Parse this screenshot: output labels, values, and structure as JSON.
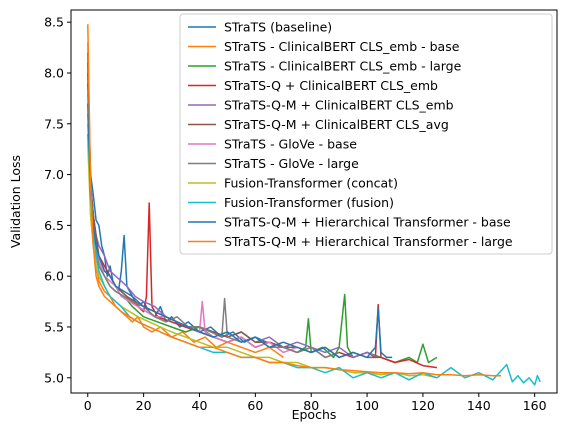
{
  "chart_data": {
    "type": "line",
    "title": "",
    "xlabel": "Epochs",
    "ylabel": "Validation Loss",
    "xlim": [
      -6,
      168
    ],
    "ylim": [
      4.85,
      8.62
    ],
    "xticks": [
      0,
      20,
      40,
      60,
      80,
      100,
      120,
      140,
      160
    ],
    "xtick_labels": [
      "0",
      "20",
      "40",
      "60",
      "80",
      "100",
      "120",
      "140",
      "160"
    ],
    "yticks": [
      5.0,
      5.5,
      6.0,
      6.5,
      7.0,
      7.5,
      8.0,
      8.5
    ],
    "ytick_labels": [
      "5.0",
      "5.5",
      "6.0",
      "6.5",
      "7.0",
      "7.5",
      "8.0",
      "8.5"
    ],
    "grid": false,
    "legend_position": "top-right",
    "series": [
      {
        "name": "STraTS (baseline)",
        "color": "#1f77b4",
        "x": [
          0,
          1,
          2,
          3,
          4,
          5,
          6,
          7,
          8,
          9,
          10,
          11,
          12,
          13,
          14,
          16,
          18,
          20,
          22,
          24,
          26,
          28,
          30,
          33,
          36,
          40,
          44,
          48,
          52,
          56,
          60,
          64
        ],
        "y": [
          7.9,
          7.0,
          6.8,
          6.55,
          6.5,
          6.3,
          6.2,
          6.0,
          6.1,
          5.95,
          5.9,
          5.85,
          6.05,
          6.4,
          5.9,
          5.8,
          5.7,
          5.75,
          5.65,
          5.6,
          5.7,
          5.55,
          5.6,
          5.5,
          5.55,
          5.45,
          5.5,
          5.4,
          5.45,
          5.35,
          5.4,
          5.35
        ]
      },
      {
        "name": "STraTS - ClinicalBERT CLS_emb - base",
        "color": "#ff7f0e",
        "x": [
          0,
          1,
          2,
          3,
          4,
          5,
          6,
          8,
          10,
          12,
          14,
          16,
          18,
          20,
          23,
          26,
          30,
          34,
          38,
          42,
          46,
          50,
          55,
          60,
          65,
          70
        ],
        "y": [
          8.3,
          6.6,
          6.3,
          6.1,
          5.95,
          5.9,
          5.85,
          5.8,
          5.7,
          5.65,
          5.6,
          5.55,
          5.6,
          5.5,
          5.45,
          5.5,
          5.4,
          5.45,
          5.35,
          5.4,
          5.3,
          5.35,
          5.3,
          5.25,
          5.3,
          5.2
        ]
      },
      {
        "name": "STraTS - ClinicalBERT CLS_emb - large",
        "color": "#2ca02c",
        "x": [
          0,
          1,
          2,
          3,
          4,
          6,
          8,
          10,
          13,
          16,
          20,
          25,
          30,
          35,
          40,
          45,
          50,
          55,
          60,
          65,
          70,
          75,
          78,
          79,
          80,
          84,
          88,
          90,
          92,
          93,
          95,
          100,
          105,
          110,
          115,
          118,
          120,
          122,
          125
        ],
        "y": [
          8.0,
          6.8,
          6.5,
          6.3,
          6.1,
          6.0,
          5.9,
          5.85,
          5.8,
          5.7,
          5.6,
          5.55,
          5.5,
          5.45,
          5.5,
          5.4,
          5.35,
          5.4,
          5.3,
          5.35,
          5.3,
          5.25,
          5.3,
          5.58,
          5.25,
          5.3,
          5.2,
          5.3,
          5.82,
          5.3,
          5.2,
          5.25,
          5.2,
          5.15,
          5.2,
          5.15,
          5.33,
          5.15,
          5.2
        ]
      },
      {
        "name": "STraTS-Q + ClinicalBERT CLS_emb",
        "color": "#d62728",
        "x": [
          0,
          1,
          2,
          3,
          4,
          6,
          8,
          10,
          12,
          14,
          16,
          18,
          20,
          21,
          22,
          23,
          25,
          30,
          35,
          40,
          45,
          50,
          55,
          60,
          65,
          70,
          75,
          80,
          85,
          90,
          95,
          100,
          103,
          104,
          105,
          110,
          115,
          120,
          125
        ],
        "y": [
          8.1,
          6.9,
          6.6,
          6.3,
          6.2,
          6.1,
          6.0,
          5.9,
          5.85,
          5.8,
          5.75,
          5.7,
          5.65,
          5.8,
          6.72,
          5.7,
          5.6,
          5.55,
          5.5,
          5.45,
          5.4,
          5.35,
          5.4,
          5.3,
          5.35,
          5.3,
          5.25,
          5.3,
          5.2,
          5.25,
          5.2,
          5.25,
          5.2,
          5.72,
          5.2,
          5.15,
          5.18,
          5.12,
          5.1
        ]
      },
      {
        "name": "STraTS-Q-M + ClinicalBERT CLS_emb",
        "color": "#9467bd",
        "x": [
          0,
          1,
          2,
          3,
          4,
          6,
          8,
          10,
          12,
          14,
          17,
          20,
          24,
          28,
          32,
          36,
          40,
          45,
          50,
          55,
          60,
          65,
          70,
          75,
          80,
          85,
          90,
          95,
          100,
          104
        ],
        "y": [
          7.8,
          6.9,
          6.6,
          6.4,
          6.3,
          6.2,
          6.05,
          6.0,
          5.95,
          5.9,
          5.8,
          5.75,
          5.7,
          5.6,
          5.55,
          5.5,
          5.5,
          5.45,
          5.4,
          5.45,
          5.35,
          5.4,
          5.3,
          5.35,
          5.3,
          5.25,
          5.3,
          5.2,
          5.25,
          5.2
        ]
      },
      {
        "name": "STraTS-Q-M + ClinicalBERT CLS_avg",
        "color": "#8c564b",
        "x": [
          0,
          1,
          2,
          3,
          4,
          6,
          8,
          10,
          12,
          14,
          17,
          20,
          24,
          28,
          32,
          36,
          40,
          45,
          50,
          55,
          60,
          65,
          70,
          75,
          80,
          85,
          90,
          95,
          100,
          105
        ],
        "y": [
          8.2,
          6.9,
          6.6,
          6.4,
          6.2,
          6.05,
          6.0,
          5.9,
          5.85,
          5.8,
          5.75,
          5.7,
          5.65,
          5.6,
          5.55,
          5.5,
          5.5,
          5.45,
          5.4,
          5.45,
          5.35,
          5.35,
          5.3,
          5.3,
          5.25,
          5.3,
          5.2,
          5.25,
          5.2,
          5.2
        ]
      },
      {
        "name": "STraTS - GloVe - base",
        "color": "#e377c2",
        "x": [
          0,
          1,
          2,
          3,
          4,
          6,
          8,
          10,
          12,
          15,
          18,
          21,
          24,
          28,
          32,
          36,
          40,
          41,
          42,
          45,
          50,
          55,
          60,
          65,
          70,
          75
        ],
        "y": [
          7.5,
          6.8,
          6.5,
          6.3,
          6.15,
          6.0,
          5.95,
          5.9,
          5.8,
          5.75,
          5.7,
          5.65,
          5.6,
          5.6,
          5.55,
          5.5,
          5.45,
          5.75,
          5.45,
          5.4,
          5.35,
          5.4,
          5.3,
          5.35,
          5.25,
          5.3
        ]
      },
      {
        "name": "STraTS - GloVe - large",
        "color": "#7f7f7f",
        "x": [
          0,
          1,
          2,
          3,
          4,
          6,
          8,
          10,
          13,
          16,
          20,
          24,
          28,
          32,
          36,
          40,
          44,
          48,
          49,
          50,
          55,
          60,
          65,
          70,
          75,
          80,
          85,
          90
        ],
        "y": [
          7.4,
          6.7,
          6.4,
          6.25,
          6.1,
          6.0,
          5.9,
          5.85,
          5.8,
          5.75,
          5.7,
          5.6,
          5.55,
          5.6,
          5.5,
          5.5,
          5.45,
          5.4,
          5.78,
          5.4,
          5.35,
          5.4,
          5.3,
          5.3,
          5.25,
          5.3,
          5.2,
          5.25
        ]
      },
      {
        "name": "Fusion-Transformer (concat)",
        "color": "#bcbd22",
        "x": [
          0,
          1,
          2,
          3,
          4,
          6,
          8,
          10,
          12,
          15,
          18,
          22,
          26,
          30,
          35,
          40,
          45,
          50,
          55,
          60,
          65,
          70,
          75,
          80,
          85,
          90,
          95,
          100,
          105,
          110,
          115,
          120,
          125
        ],
        "y": [
          7.3,
          6.6,
          6.3,
          6.1,
          6.0,
          5.9,
          5.8,
          5.75,
          5.7,
          5.65,
          5.6,
          5.55,
          5.5,
          5.45,
          5.4,
          5.35,
          5.3,
          5.3,
          5.25,
          5.2,
          5.2,
          5.15,
          5.15,
          5.1,
          5.1,
          5.08,
          5.05,
          5.05,
          5.03,
          5.05,
          5.02,
          5.03,
          5.0
        ]
      },
      {
        "name": "Fusion-Transformer (fusion)",
        "color": "#17becf",
        "x": [
          0,
          1,
          2,
          3,
          4,
          6,
          8,
          10,
          12,
          15,
          18,
          22,
          26,
          30,
          35,
          40,
          45,
          50,
          55,
          60,
          65,
          70,
          75,
          80,
          85,
          90,
          95,
          100,
          105,
          110,
          115,
          120,
          125,
          130,
          135,
          140,
          145,
          150,
          152,
          154,
          156,
          158,
          160,
          161,
          162
        ],
        "y": [
          7.6,
          6.8,
          6.5,
          6.2,
          6.05,
          5.9,
          5.8,
          5.75,
          5.7,
          5.6,
          5.55,
          5.5,
          5.45,
          5.4,
          5.35,
          5.3,
          5.25,
          5.25,
          5.2,
          5.2,
          5.15,
          5.15,
          5.1,
          5.1,
          5.05,
          5.1,
          5.0,
          5.05,
          5.0,
          5.05,
          4.98,
          5.05,
          5.0,
          5.1,
          5.0,
          5.05,
          4.98,
          5.13,
          4.96,
          5.02,
          4.95,
          5.0,
          4.93,
          5.02,
          4.96
        ]
      },
      {
        "name": "STraTS-Q-M + Hierarchical Transformer - base",
        "color": "#1f77b4",
        "x": [
          0,
          1,
          2,
          3,
          4,
          6,
          8,
          10,
          13,
          16,
          20,
          24,
          28,
          32,
          36,
          40,
          45,
          50,
          55,
          60,
          65,
          70,
          75,
          80,
          85,
          90,
          95,
          100,
          103,
          104,
          105,
          107,
          109
        ],
        "y": [
          7.7,
          6.8,
          6.5,
          6.3,
          6.2,
          6.05,
          6.0,
          5.9,
          5.85,
          5.8,
          5.7,
          5.65,
          5.6,
          5.55,
          5.5,
          5.45,
          5.4,
          5.45,
          5.35,
          5.4,
          5.3,
          5.35,
          5.3,
          5.25,
          5.3,
          5.2,
          5.25,
          5.2,
          5.3,
          5.68,
          5.25,
          5.2,
          5.2
        ]
      },
      {
        "name": "STraTS-Q-M + Hierarchical Transformer - large",
        "color": "#ff7f0e",
        "x": [
          0,
          1,
          2,
          3,
          4,
          6,
          8,
          10,
          12,
          15,
          18,
          22,
          26,
          30,
          35,
          40,
          45,
          50,
          55,
          60,
          65,
          70,
          75,
          80,
          85,
          90,
          95,
          100,
          105,
          110,
          115,
          120,
          125,
          130,
          135,
          140,
          145,
          148
        ],
        "y": [
          8.48,
          6.9,
          6.3,
          6.0,
          5.9,
          5.8,
          5.75,
          5.7,
          5.65,
          5.6,
          5.55,
          5.5,
          5.45,
          5.4,
          5.35,
          5.3,
          5.3,
          5.25,
          5.2,
          5.2,
          5.15,
          5.15,
          5.12,
          5.1,
          5.1,
          5.08,
          5.07,
          5.06,
          5.05,
          5.05,
          5.04,
          5.05,
          5.03,
          5.03,
          5.02,
          5.03,
          5.02,
          5.02
        ]
      }
    ]
  }
}
